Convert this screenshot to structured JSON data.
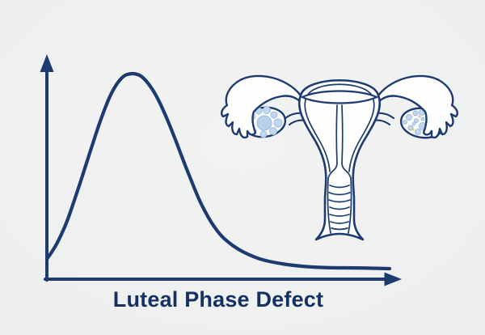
{
  "caption": {
    "text": "Luteal Phase Defect"
  },
  "colors": {
    "background": "#eef0ef",
    "ink_navy": "#1d3b6f",
    "text_navy": "#16315f",
    "illustration_fill": "#fdfefd",
    "follicle_blue": "#c3d7ee",
    "follicle_edge": "#9dbbdf",
    "follicle_yellow": "#ccd28a"
  },
  "chart_data": {
    "type": "line",
    "title": "",
    "xlabel": "Luteal Phase Defect",
    "ylabel": "",
    "description": "Right-skewed curve: steep rise to an early peak then a long decaying tail toward the x-axis. Axes are plain navy arrows with no ticks, numbers or grid.",
    "xlim": [
      0,
      1
    ],
    "ylim": [
      0,
      1
    ],
    "grid": false,
    "legend": false,
    "x": [
      0.0,
      0.019,
      0.038,
      0.057,
      0.075,
      0.094,
      0.113,
      0.132,
      0.151,
      0.17,
      0.189,
      0.208,
      0.226,
      0.243,
      0.259,
      0.276,
      0.292,
      0.311,
      0.33,
      0.349,
      0.368,
      0.387,
      0.406,
      0.425,
      0.443,
      0.462,
      0.481,
      0.505,
      0.528,
      0.557,
      0.59,
      0.627,
      0.67,
      0.717,
      0.771,
      0.83,
      0.901,
      1.0
    ],
    "y": [
      0.098,
      0.142,
      0.201,
      0.272,
      0.358,
      0.453,
      0.551,
      0.65,
      0.748,
      0.835,
      0.909,
      0.961,
      0.992,
      1.0,
      1.0,
      0.988,
      0.961,
      0.917,
      0.858,
      0.787,
      0.709,
      0.626,
      0.543,
      0.465,
      0.39,
      0.327,
      0.272,
      0.217,
      0.181,
      0.146,
      0.118,
      0.094,
      0.079,
      0.067,
      0.059,
      0.055,
      0.055,
      0.051
    ]
  },
  "illustration": {
    "name": "female-reproductive-system",
    "parts": [
      "uterus-body",
      "endometrial-cavity",
      "cervical-canal",
      "cervix-with-rugae",
      "left-fallopian-tube",
      "right-fallopian-tube",
      "left-fimbriae",
      "right-fimbriae",
      "left-ovary-with-follicles",
      "right-ovary-with-follicles",
      "ovarian-ligaments"
    ]
  }
}
